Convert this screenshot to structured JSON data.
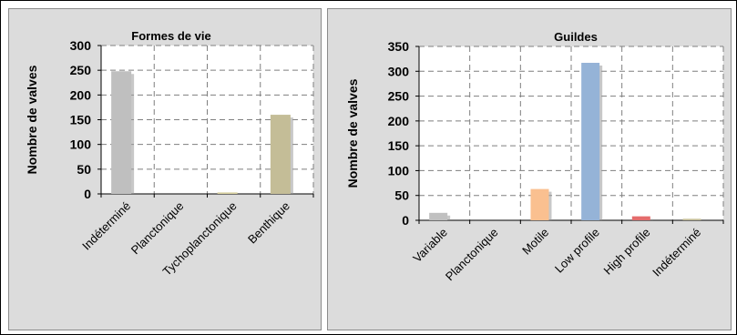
{
  "chart_data": [
    {
      "type": "bar",
      "title": "Formes de vie",
      "xlabel": "",
      "ylabel": "Nombre de valves",
      "ylim": [
        0,
        300
      ],
      "yticks": [
        0,
        50,
        100,
        150,
        200,
        250,
        300
      ],
      "categories": [
        "Indéterminé",
        "Planctonique",
        "Tychoplanctonique",
        "Benthique"
      ],
      "values": [
        248,
        0,
        3,
        160
      ],
      "colors": [
        "#bfbfbf",
        "#bfbfbf",
        "#d8d0a0",
        "#c4bd97"
      ],
      "grid": true,
      "legend": "none"
    },
    {
      "type": "bar",
      "title": "Guildes",
      "xlabel": "",
      "ylabel": "Nombre de valves",
      "ylim": [
        0,
        350
      ],
      "yticks": [
        0,
        50,
        100,
        150,
        200,
        250,
        300,
        350
      ],
      "categories": [
        "Variable",
        "Planctonique",
        "Motile",
        "Low profile",
        "High profile",
        "Indéterminé"
      ],
      "values": [
        15,
        0,
        63,
        317,
        8,
        3
      ],
      "colors": [
        "#c0c0c0",
        "#c0c0c0",
        "#fac090",
        "#95b3d7",
        "#e46c6c",
        "#c4bd97"
      ],
      "grid": true,
      "legend": "none"
    }
  ]
}
